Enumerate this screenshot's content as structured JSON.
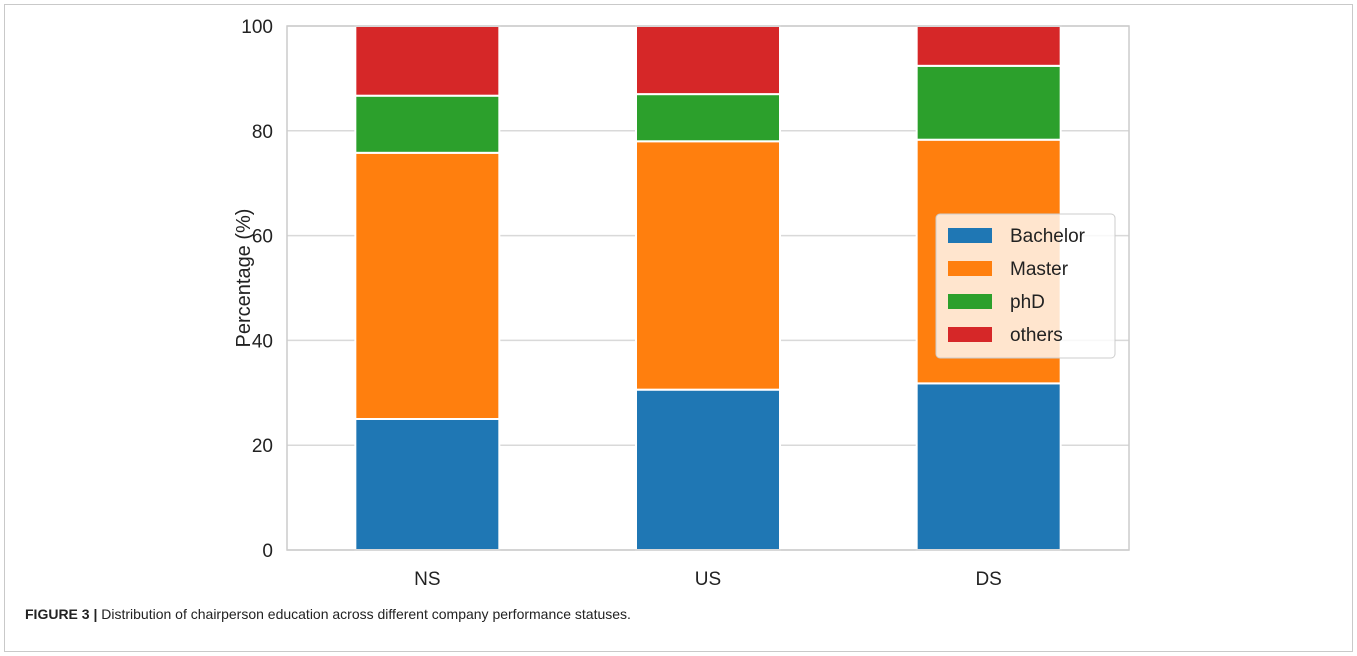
{
  "caption": {
    "label": "FIGURE 3 |",
    "text": "Distribution of chairperson education across different company performance statuses."
  },
  "chart_data": {
    "type": "bar",
    "stacked": true,
    "categories": [
      "NS",
      "US",
      "DS"
    ],
    "series": [
      {
        "name": "Bachelor",
        "color": "#1f77b4",
        "values": [
          25.0,
          30.6,
          31.8
        ]
      },
      {
        "name": "Master",
        "color": "#ff7f0e",
        "values": [
          50.8,
          47.4,
          46.5
        ]
      },
      {
        "name": "phD",
        "color": "#2ca02c",
        "values": [
          10.9,
          9.0,
          14.1
        ]
      },
      {
        "name": "others",
        "color": "#d62728",
        "values": [
          13.3,
          13.0,
          7.6
        ]
      }
    ],
    "xlabel": "",
    "ylabel": "Percentage (%)",
    "ylim": [
      0,
      100
    ],
    "yticks": [
      0,
      20,
      40,
      60,
      80,
      100
    ],
    "grid": true,
    "legend_position": "center-right"
  }
}
